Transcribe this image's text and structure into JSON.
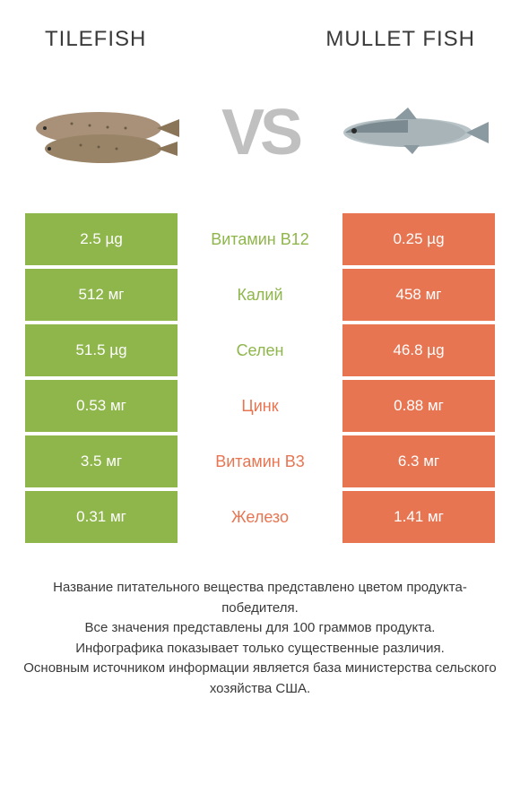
{
  "colors": {
    "left": "#8eb64b",
    "right": "#e87552",
    "vs": "#c0c0c0",
    "text": "#3a3a3a",
    "white": "#ffffff"
  },
  "header": {
    "left": "TILEFISH",
    "right": "MULLET FISH",
    "vs": "VS"
  },
  "rows": [
    {
      "label": "Витамин B12",
      "left": "2.5 µg",
      "right": "0.25 µg",
      "label_color": "left"
    },
    {
      "label": "Калий",
      "left": "512 мг",
      "right": "458 мг",
      "label_color": "left"
    },
    {
      "label": "Селен",
      "left": "51.5 µg",
      "right": "46.8 µg",
      "label_color": "left"
    },
    {
      "label": "Цинк",
      "left": "0.53 мг",
      "right": "0.88 мг",
      "label_color": "right"
    },
    {
      "label": "Витамин B3",
      "left": "3.5 мг",
      "right": "6.3 мг",
      "label_color": "right"
    },
    {
      "label": "Железо",
      "left": "0.31 мг",
      "right": "1.41 мг",
      "label_color": "right"
    }
  ],
  "footer": {
    "l1": "Название питательного вещества представлено цветом продукта-победителя.",
    "l2": "Все значения представлены для 100 граммов продукта.",
    "l3": "Инфографика показывает только существенные различия.",
    "l4": "Основным источником информации является база министерства сельского хозяйства США."
  },
  "fish_left": {
    "body": "#a89178",
    "spot": "#6b5a42"
  },
  "fish_right": {
    "body": "#b8c4c8",
    "dark": "#7a8a90"
  }
}
